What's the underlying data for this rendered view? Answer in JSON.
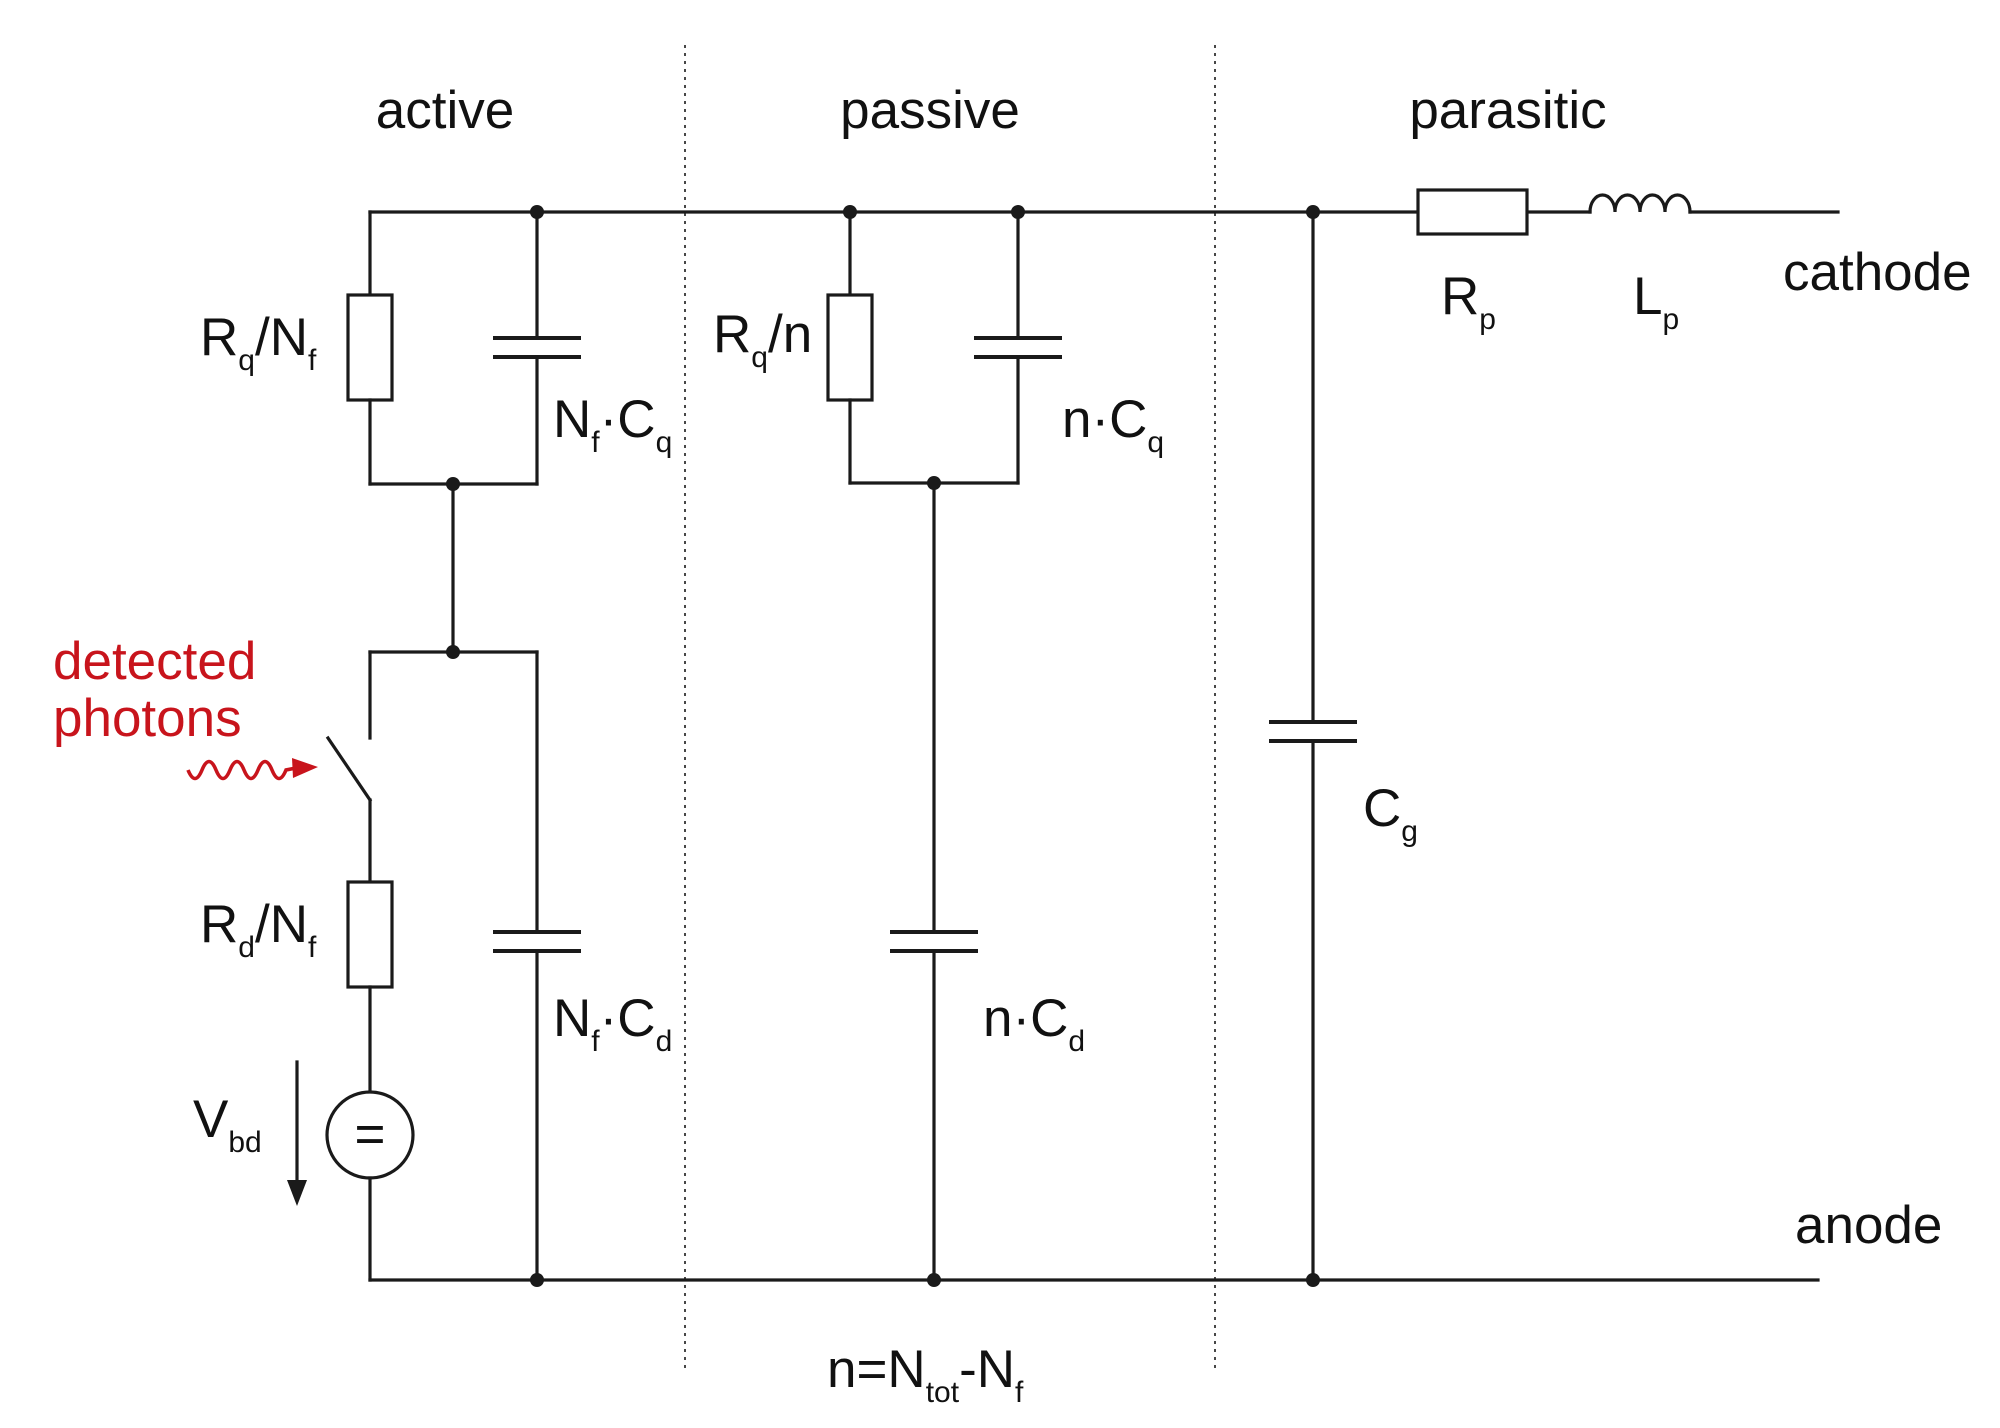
{
  "sections": {
    "active": "active",
    "passive": "passive",
    "parasitic": "parasitic"
  },
  "terminals": {
    "cathode": "cathode",
    "anode": "anode"
  },
  "photon_label": {
    "line1": "detected",
    "line2": "photons"
  },
  "components": {
    "rq_nf": {
      "main": "R",
      "sub1": "q",
      "mid": "/N",
      "sub2": "f"
    },
    "nf_cq": {
      "main": "N",
      "sub1": "f",
      "mid": "·C",
      "sub2": "q"
    },
    "rd_nf": {
      "main": "R",
      "sub1": "d",
      "mid": "/N",
      "sub2": "f"
    },
    "nf_cd": {
      "main": "N",
      "sub1": "f",
      "mid": "·C",
      "sub2": "d"
    },
    "vbd": {
      "main": "V",
      "sub1": "bd"
    },
    "source_symbol": "=",
    "rq_n": {
      "main": "R",
      "sub1": "q",
      "mid": "/n"
    },
    "n_cq": {
      "main": "n·C",
      "sub1": "q"
    },
    "n_cd": {
      "main": "n·C",
      "sub1": "d"
    },
    "cg": {
      "main": "C",
      "sub1": "g"
    },
    "rp": {
      "main": "R",
      "sub1": "p"
    },
    "lp": {
      "main": "L",
      "sub1": "p"
    }
  },
  "formula": {
    "main": "n=N",
    "sub1": "tot",
    "mid": "-N",
    "sub2": "f"
  },
  "colors": {
    "photon": "#c8141c",
    "line": "#1a1a1a"
  }
}
